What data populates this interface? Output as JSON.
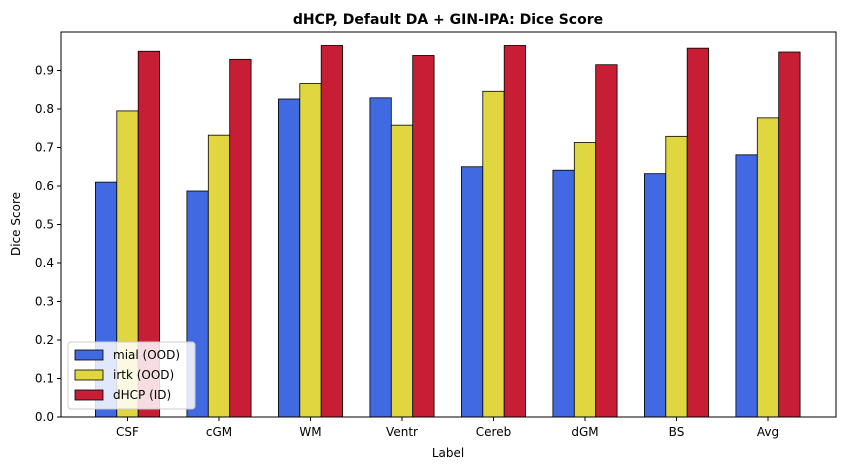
{
  "chart_data": {
    "type": "bar",
    "title": "dHCP, Default DA + GIN-IPA: Dice Score",
    "xlabel": "Label",
    "ylabel": "Dice Score",
    "categories": [
      "CSF",
      "cGM",
      "WM",
      "Ventr",
      "Cereb",
      "dGM",
      "BS",
      "Avg"
    ],
    "ylim": [
      0,
      1.0
    ],
    "yticks": [
      "0.0",
      "0.1",
      "0.2",
      "0.3",
      "0.4",
      "0.5",
      "0.6",
      "0.7",
      "0.8",
      "0.9"
    ],
    "grid": false,
    "legend_position": "lower-left",
    "series": [
      {
        "name": "mial (OOD)",
        "color": "#4169E1",
        "values": [
          0.61,
          0.587,
          0.826,
          0.829,
          0.65,
          0.641,
          0.632,
          0.681
        ]
      },
      {
        "name": "irtk (OOD)",
        "color": "#E0D640",
        "values": [
          0.795,
          0.732,
          0.866,
          0.758,
          0.846,
          0.713,
          0.729,
          0.777
        ]
      },
      {
        "name": "dHCP (ID)",
        "color": "#C81E35",
        "values": [
          0.95,
          0.929,
          0.965,
          0.939,
          0.965,
          0.915,
          0.958,
          0.948
        ]
      }
    ]
  }
}
